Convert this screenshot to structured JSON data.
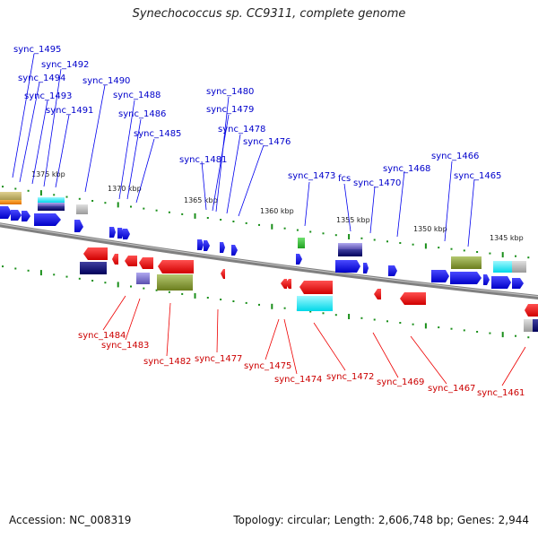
{
  "title": "Synechococcus sp. CC9311, complete genome",
  "footer": {
    "accession": "Accession: NC_008319",
    "topology": "Topology: circular; Length: 2,606,748 bp; Genes: 2,944"
  },
  "colors": {
    "top_strand": "#0000ee",
    "bottom_strand": "#ee0000",
    "backbone": "#808080",
    "tick": "#1a8f1a"
  },
  "kbp_ticks": [
    "1375 kbp",
    "1370 kbp",
    "1365 kbp",
    "1360 kbp",
    "1355 kbp",
    "1350 kbp",
    "1345 kbp"
  ],
  "top_genes": [
    "sync_1495",
    "sync_1492",
    "sync_1494",
    "sync_1493",
    "sync_1491",
    "sync_1490",
    "sync_1488",
    "sync_1486",
    "sync_1485",
    "sync_1480",
    "sync_1479",
    "sync_1478",
    "sync_1476",
    "sync_1481",
    "sync_1473",
    "fcs",
    "sync_1470",
    "sync_1468",
    "sync_1466",
    "sync_1465"
  ],
  "bottom_genes": [
    "sync_1484",
    "sync_1483",
    "sync_1482",
    "sync_1477",
    "sync_1475",
    "sync_1474",
    "sync_1472",
    "sync_1469",
    "sync_1467",
    "sync_1461"
  ]
}
